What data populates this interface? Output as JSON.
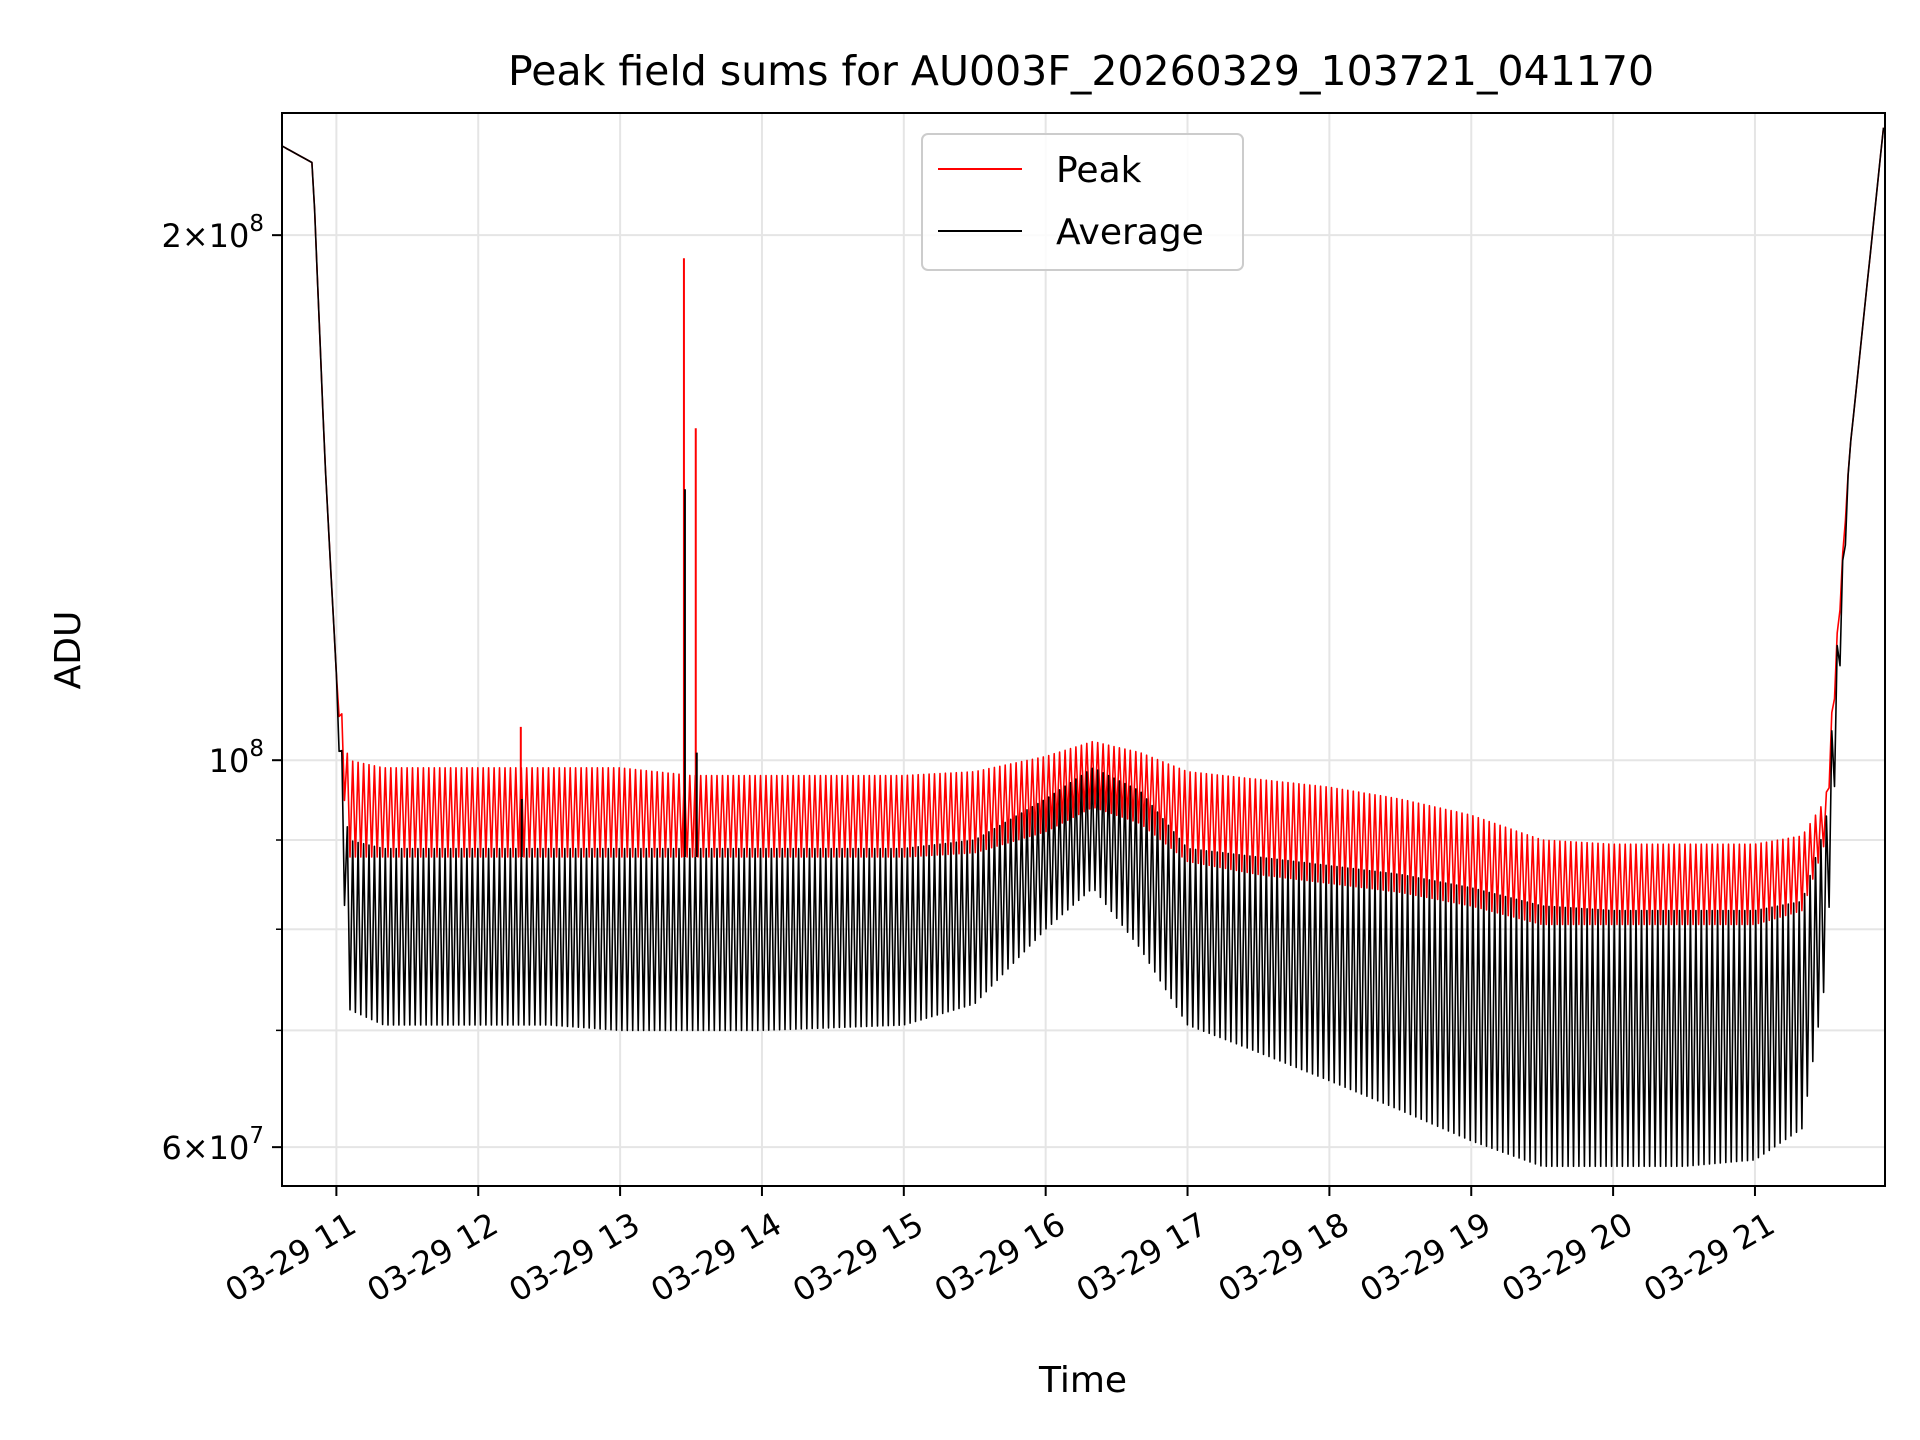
{
  "chart_data": {
    "type": "line",
    "title": "Peak field sums for AU003F_20260329_103721_041170",
    "xlabel": "Time",
    "ylabel": "ADU",
    "yscale": "log",
    "ylim": [
      57000000,
      235000000
    ],
    "xlim": [
      "03-29 10:37",
      "03-29 21:55"
    ],
    "x_tick_labels": [
      "03-29 11",
      "03-29 12",
      "03-29 13",
      "03-29 14",
      "03-29 15",
      "03-29 16",
      "03-29 17",
      "03-29 18",
      "03-29 19",
      "03-29 20",
      "03-29 21"
    ],
    "y_major_ticks": [
      {
        "value": 60000000,
        "mantissa": "6",
        "base": "10",
        "exp": "7"
      },
      {
        "value": 100000000,
        "mantissa": "",
        "base": "10",
        "exp": "8"
      },
      {
        "value": 200000000,
        "mantissa": "2",
        "base": "10",
        "exp": "8"
      }
    ],
    "y_minor_gridlines": [
      70000000,
      80000000,
      90000000
    ],
    "grid": true,
    "legend_position": "top-center",
    "series": [
      {
        "name": "Peak",
        "color": "#ff0000",
        "envelope_time": [
          "03-29 10:37",
          "03-29 10:50",
          "03-29 10:55",
          "03-29 11:00",
          "03-29 11:05",
          "03-29 11:20",
          "03-29 12:00",
          "03-29 12:30",
          "03-29 13:00",
          "03-29 13:30",
          "03-29 14:00",
          "03-29 15:00",
          "03-29 15:30",
          "03-29 16:00",
          "03-29 16:20",
          "03-29 16:40",
          "03-29 17:00",
          "03-29 17:30",
          "03-29 18:00",
          "03-29 18:30",
          "03-29 19:00",
          "03-29 19:30",
          "03-29 20:00",
          "03-29 20:30",
          "03-29 21:00",
          "03-29 21:20",
          "03-29 21:30",
          "03-29 21:40",
          "03-29 21:55"
        ],
        "upper": [
          225000000,
          220000000,
          150000000,
          112000000,
          100000000,
          99000000,
          99000000,
          99000000,
          99000000,
          98000000,
          98000000,
          98000000,
          98500000,
          100500000,
          102500000,
          101000000,
          98500000,
          97500000,
          96500000,
          95000000,
          93000000,
          90000000,
          89500000,
          89500000,
          89500000,
          90500000,
          95000000,
          150000000,
          235000000
        ],
        "lower": [
          225000000,
          220000000,
          150000000,
          112000000,
          88000000,
          88000000,
          88000000,
          88000000,
          88000000,
          88000000,
          88000000,
          88000000,
          88500000,
          91000000,
          94000000,
          92000000,
          87500000,
          86000000,
          85000000,
          84000000,
          82500000,
          80500000,
          80500000,
          80500000,
          80500000,
          82000000,
          90000000,
          150000000,
          235000000
        ]
      },
      {
        "name": "Average",
        "color": "#000000",
        "envelope_time": [
          "03-29 10:37",
          "03-29 10:50",
          "03-29 10:55",
          "03-29 11:00",
          "03-29 11:05",
          "03-29 11:20",
          "03-29 12:00",
          "03-29 12:30",
          "03-29 13:00",
          "03-29 13:30",
          "03-29 14:00",
          "03-29 15:00",
          "03-29 15:30",
          "03-29 16:00",
          "03-29 16:20",
          "03-29 16:40",
          "03-29 17:00",
          "03-29 17:30",
          "03-29 18:00",
          "03-29 18:30",
          "03-29 19:00",
          "03-29 19:30",
          "03-29 20:00",
          "03-29 20:30",
          "03-29 21:00",
          "03-29 21:20",
          "03-29 21:30",
          "03-29 21:40",
          "03-29 21:55"
        ],
        "upper": [
          225000000,
          220000000,
          150000000,
          112000000,
          90000000,
          89000000,
          89000000,
          89000000,
          89000000,
          89000000,
          89000000,
          89000000,
          90000000,
          95000000,
          99000000,
          96000000,
          89000000,
          88000000,
          87000000,
          86000000,
          84500000,
          82500000,
          82000000,
          82000000,
          82000000,
          83000000,
          92000000,
          150000000,
          235000000
        ],
        "lower": [
          225000000,
          220000000,
          150000000,
          112000000,
          72000000,
          70500000,
          70500000,
          70500000,
          70000000,
          70000000,
          70000000,
          70500000,
          72500000,
          80000000,
          84500000,
          78000000,
          70500000,
          68000000,
          65500000,
          63000000,
          60500000,
          58500000,
          58500000,
          58500000,
          59000000,
          61500000,
          75000000,
          150000000,
          235000000
        ]
      }
    ],
    "spikes": [
      {
        "time": "03-29 12:18",
        "peak": 104500000,
        "average": 95000000
      },
      {
        "time": "03-29 13:27",
        "peak": 194000000,
        "average": 143000000
      },
      {
        "time": "03-29 13:32",
        "peak": 155000000,
        "average": 101000000
      }
    ]
  }
}
